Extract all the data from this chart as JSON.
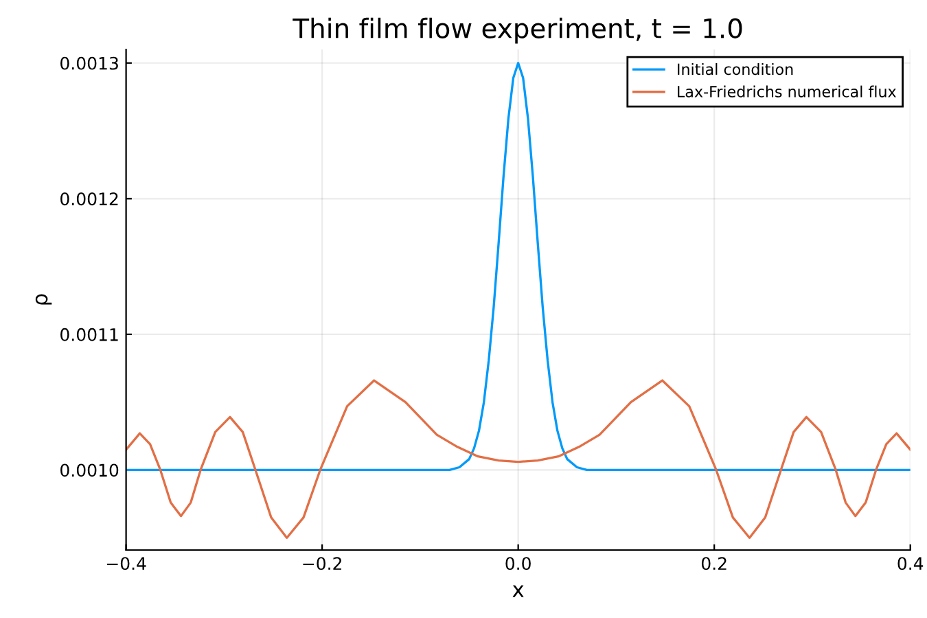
{
  "chart_data": {
    "type": "line",
    "title": "Thin film flow experiment, t = 1.0",
    "xlabel": "x",
    "ylabel": "ρ",
    "xlim": [
      -0.4,
      0.4
    ],
    "ylim": [
      0.000941,
      0.00131
    ],
    "xticks": [
      {
        "value": -0.4,
        "label": "−0.4"
      },
      {
        "value": -0.2,
        "label": "−0.2"
      },
      {
        "value": 0,
        "label": "0.0"
      },
      {
        "value": 0.2,
        "label": "0.2"
      },
      {
        "value": 0.4,
        "label": "0.4"
      }
    ],
    "yticks": [
      {
        "value": 0.001,
        "label": "0.0010"
      },
      {
        "value": 0.0011,
        "label": "0.0011"
      },
      {
        "value": 0.0012,
        "label": "0.0012"
      },
      {
        "value": 0.0013,
        "label": "0.0013"
      }
    ],
    "grid": true,
    "legend": "top right",
    "line_style": "solid",
    "marker": "none",
    "series": [
      {
        "name": "Initial condition",
        "color": "#009af9",
        "x": [
          -0.4,
          -0.07,
          -0.06,
          -0.05,
          -0.045,
          -0.04,
          -0.035,
          -0.03,
          -0.025,
          -0.02,
          -0.015,
          -0.01,
          -0.005,
          0,
          0.005,
          0.01,
          0.015,
          0.02,
          0.025,
          0.03,
          0.035,
          0.04,
          0.045,
          0.05,
          0.06,
          0.07,
          0.4
        ],
        "values": [
          0.001,
          0.001,
          0.001002,
          0.001008,
          0.001016,
          0.001029,
          0.00105,
          0.001081,
          0.00112,
          0.001167,
          0.001216,
          0.001259,
          0.001289,
          0.0013,
          0.001289,
          0.001259,
          0.001216,
          0.001167,
          0.00112,
          0.001081,
          0.00105,
          0.001029,
          0.001016,
          0.001008,
          0.001002,
          0.001,
          0.001
        ]
      },
      {
        "name": "Lax-Friedrichs numerical flux",
        "color": "#e26f46",
        "x": [
          -0.4,
          -0.386,
          -0.3755,
          -0.365,
          -0.3545,
          -0.344,
          -0.334,
          -0.324,
          -0.309,
          -0.294,
          -0.281,
          -0.268,
          -0.252,
          -0.236,
          -0.219,
          -0.202,
          -0.1745,
          -0.147,
          -0.115,
          -0.083,
          -0.062,
          -0.041,
          -0.02,
          0,
          0.02,
          0.041,
          0.062,
          0.083,
          0.115,
          0.147,
          0.1745,
          0.202,
          0.219,
          0.236,
          0.252,
          0.268,
          0.281,
          0.294,
          0.309,
          0.324,
          0.334,
          0.344,
          0.3545,
          0.365,
          0.3755,
          0.386,
          0.4
        ],
        "values": [
          0.001015,
          0.001027,
          0.001019,
          0.001,
          0.000976,
          0.000966,
          0.000976,
          0.001,
          0.001028,
          0.001039,
          0.001028,
          0.001,
          0.000965,
          0.00095,
          0.000965,
          0.001,
          0.001047,
          0.001066,
          0.00105,
          0.001026,
          0.001017,
          0.00101,
          0.001007,
          0.001006,
          0.001007,
          0.00101,
          0.001017,
          0.001026,
          0.00105,
          0.001066,
          0.001047,
          0.001,
          0.000965,
          0.00095,
          0.000965,
          0.001,
          0.001028,
          0.001039,
          0.001028,
          0.001,
          0.000976,
          0.000966,
          0.000976,
          0.001,
          0.001019,
          0.001027,
          0.001015
        ]
      }
    ]
  }
}
